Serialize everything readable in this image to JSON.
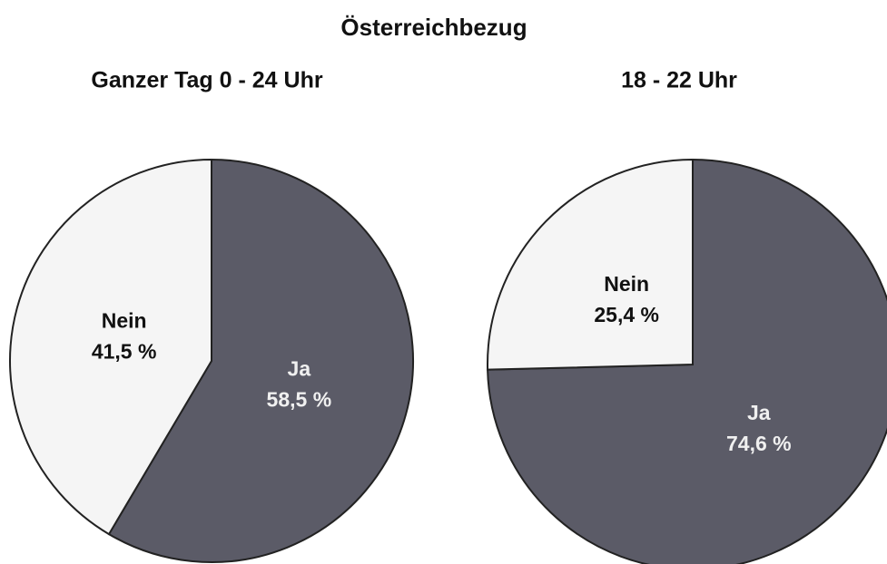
{
  "title": "Österreichbezug",
  "chart_data": [
    {
      "type": "pie",
      "title": "Ganzer Tag 0 - 24 Uhr",
      "categories": [
        "Ja",
        "Nein"
      ],
      "values": [
        58.5,
        41.5
      ],
      "value_labels": [
        "58,5 %",
        "41,5 %"
      ],
      "colors": [
        "#5b5b67",
        "#f5f5f5"
      ]
    },
    {
      "type": "pie",
      "title": "18 - 22 Uhr",
      "categories": [
        "Ja",
        "Nein"
      ],
      "values": [
        74.6,
        25.4
      ],
      "value_labels": [
        "74,6 %",
        "25,4 %"
      ],
      "colors": [
        "#5b5b67",
        "#f5f5f5"
      ]
    }
  ]
}
